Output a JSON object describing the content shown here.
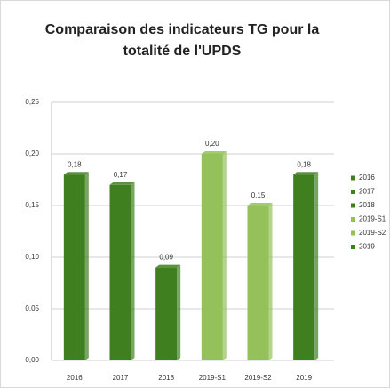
{
  "chart_data": {
    "type": "bar",
    "title": "Comparaison des indicateurs TG pour la totalité de l'UPDS",
    "categories": [
      "2016",
      "2017",
      "2018",
      "2019-S1",
      "2019-S2",
      "2019"
    ],
    "values": [
      0.18,
      0.17,
      0.09,
      0.2,
      0.15,
      0.18
    ],
    "value_labels": [
      "0,18",
      "0,17",
      "0,09",
      "0,20",
      "0,15",
      "0,18"
    ],
    "colors": [
      "#3f7f1f",
      "#3f7f1f",
      "#3f7f1f",
      "#94c15a",
      "#94c15a",
      "#3f7f1f"
    ],
    "ylim": [
      0,
      0.25
    ],
    "yticks": [
      {
        "value": 0,
        "label": "0,00"
      },
      {
        "value": 0.05,
        "label": "0,05"
      },
      {
        "value": 0.1,
        "label": "0,10"
      },
      {
        "value": 0.15,
        "label": "0,15"
      },
      {
        "value": 0.2,
        "label": "0,20"
      },
      {
        "value": 0.25,
        "label": "0,25"
      }
    ],
    "grid": true,
    "legend": "right"
  }
}
